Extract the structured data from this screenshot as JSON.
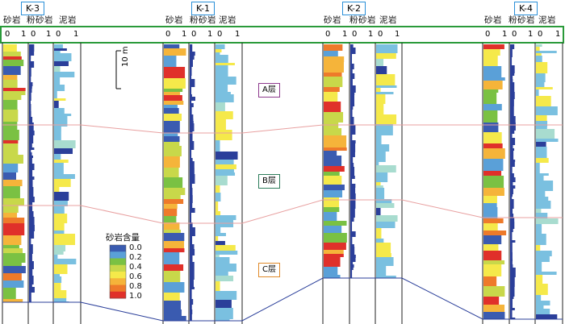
{
  "wells": [
    {
      "id": "K-3",
      "lith_labels": [
        "砂岩",
        "粉砂岩",
        "泥岩"
      ]
    },
    {
      "id": "K-1",
      "lith_labels": [
        "砂岩",
        "粉砂岩",
        "泥岩"
      ]
    },
    {
      "id": "K-2",
      "lith_labels": [
        "砂岩",
        "粉砂岩",
        "泥岩"
      ]
    },
    {
      "id": "K-4",
      "lith_labels": [
        "砂岩",
        "粉砂岩",
        "泥岩"
      ]
    }
  ],
  "scale_labels": {
    "min": "0",
    "max": "1"
  },
  "scale_bar_label": "10 m",
  "zones": [
    {
      "label": "A层",
      "color": "#8e3a8e"
    },
    {
      "label": "B层",
      "color": "#2e7d5b"
    },
    {
      "label": "C层",
      "color": "#e08a2a"
    }
  ],
  "legend": {
    "title": "砂岩含量",
    "values": [
      "0.0",
      "0.2",
      "0.4",
      "0.6",
      "0.8",
      "1.0"
    ],
    "colors": [
      "#3a5bb0",
      "#5aa0d8",
      "#7ac143",
      "#c8d84a",
      "#f5e94a",
      "#f5b43a",
      "#ee7a2a",
      "#e0302a"
    ]
  },
  "colors": {
    "frame": "#2a9a3a",
    "well_tag_border": "#2a8fd8",
    "silt": "#2b3f9a",
    "mud": "#7ac0e0",
    "correlation": "#e8a0a0",
    "base": "#2b3f9a"
  }
}
